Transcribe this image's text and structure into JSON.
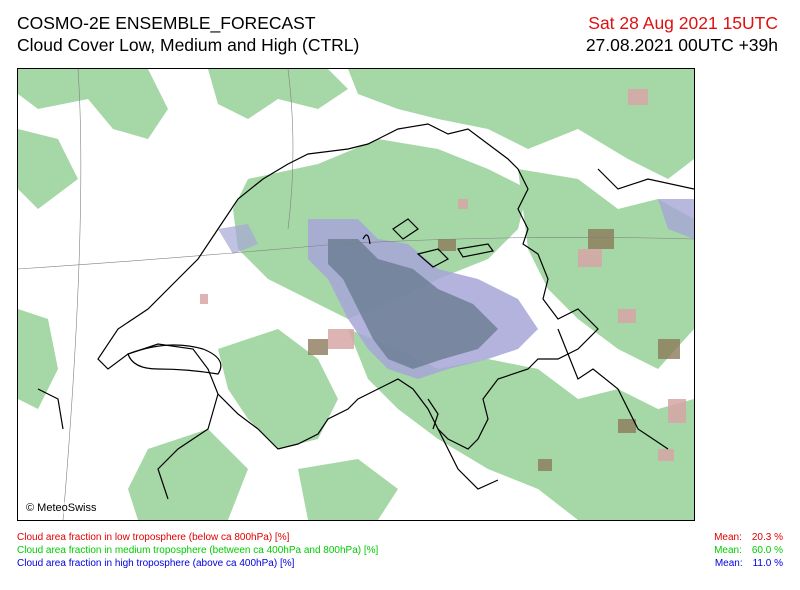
{
  "header": {
    "model": "COSMO-2E ENSEMBLE_FORECAST",
    "product": "Cloud Cover Low, Medium and High (CTRL)",
    "valid_time": "Sat 28 Aug 2021 15UTC",
    "init_time": "27.08.2021 00UTC +39h"
  },
  "map": {
    "copyright": "© MeteoSwiss",
    "colors": {
      "medium_cloud": "#a6d7a6",
      "low_cloud": "#d7a6a6",
      "mixed_low_medium": "#8c7a5a",
      "high_cloud": "#a6a6d7",
      "high_medium_overlap": "#6f7f97",
      "borders": "#000000",
      "grid": "#808080"
    }
  },
  "legend": {
    "mean_label": "Mean:",
    "rows": [
      {
        "text": "Cloud area fraction in low troposphere (below ca 800hPa) [%]",
        "mean": "20.3 %",
        "color": "#e00000"
      },
      {
        "text": "Cloud area fraction in medium troposphere (between ca 400hPa and 800hPa) [%]",
        "mean": "60.0 %",
        "color": "#00cc00"
      },
      {
        "text": "Cloud area fraction in high troposphere (above ca 400hPa) [%]",
        "mean": "11.0 %",
        "color": "#0000e0"
      }
    ]
  }
}
